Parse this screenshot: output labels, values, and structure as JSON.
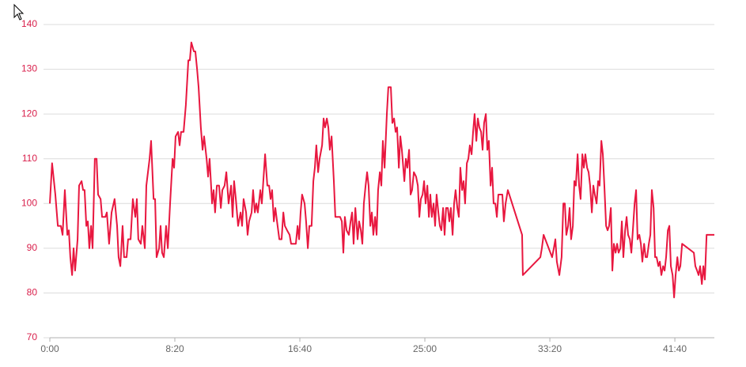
{
  "chart_data": {
    "type": "line",
    "xlim": [
      0,
      2658
    ],
    "ylim": [
      70,
      140
    ],
    "yticks": [
      70,
      80,
      90,
      100,
      110,
      120,
      130,
      140
    ],
    "xticks": [
      {
        "value": 0,
        "label": "0:00"
      },
      {
        "value": 500,
        "label": "8:20"
      },
      {
        "value": 1000,
        "label": "16:40"
      },
      {
        "value": 1500,
        "label": "25:00"
      },
      {
        "value": 2000,
        "label": "33:20"
      },
      {
        "value": 2500,
        "label": "41:40"
      }
    ],
    "grid": true,
    "x": [
      0,
      9,
      22,
      32,
      44,
      51,
      60,
      70,
      76,
      82,
      89,
      95,
      101,
      111,
      117,
      127,
      133,
      139,
      146,
      152,
      158,
      165,
      171,
      180,
      187,
      193,
      203,
      209,
      222,
      228,
      237,
      247,
      259,
      269,
      275,
      282,
      291,
      297,
      307,
      313,
      323,
      332,
      342,
      348,
      354,
      364,
      370,
      380,
      386,
      399,
      405,
      415,
      421,
      427,
      437,
      443,
      449,
      456,
      465,
      472,
      481,
      491,
      497,
      503,
      513,
      519,
      525,
      535,
      544,
      554,
      560,
      566,
      576,
      582,
      589,
      595,
      604,
      611,
      617,
      627,
      633,
      639,
      649,
      655,
      661,
      668,
      677,
      684,
      690,
      699,
      706,
      715,
      725,
      731,
      737,
      744,
      753,
      763,
      769,
      775,
      785,
      791,
      797,
      807,
      813,
      820,
      826,
      832,
      842,
      848,
      861,
      870,
      877,
      883,
      889,
      896,
      902,
      911,
      918,
      927,
      934,
      940,
      949,
      959,
      965,
      975,
      984,
      991,
      997,
      1003,
      1009,
      1019,
      1025,
      1032,
      1038,
      1047,
      1054,
      1060,
      1066,
      1073,
      1079,
      1089,
      1095,
      1101,
      1108,
      1114,
      1120,
      1127,
      1136,
      1142,
      1149,
      1155,
      1161,
      1168,
      1174,
      1180,
      1187,
      1196,
      1203,
      1209,
      1215,
      1222,
      1231,
      1237,
      1244,
      1250,
      1256,
      1263,
      1269,
      1275,
      1282,
      1288,
      1294,
      1301,
      1307,
      1313,
      1320,
      1326,
      1332,
      1339,
      1348,
      1354,
      1364,
      1370,
      1377,
      1383,
      1389,
      1396,
      1402,
      1408,
      1418,
      1424,
      1430,
      1437,
      1443,
      1449,
      1456,
      1465,
      1472,
      1478,
      1484,
      1491,
      1497,
      1503,
      1510,
      1516,
      1522,
      1528,
      1535,
      1541,
      1547,
      1554,
      1560,
      1566,
      1573,
      1579,
      1585,
      1592,
      1598,
      1604,
      1611,
      1617,
      1623,
      1630,
      1636,
      1642,
      1649,
      1655,
      1661,
      1668,
      1674,
      1680,
      1687,
      1693,
      1699,
      1706,
      1712,
      1718,
      1725,
      1731,
      1737,
      1744,
      1750,
      1756,
      1763,
      1769,
      1775,
      1782,
      1788,
      1794,
      1804,
      1810,
      1816,
      1823,
      1832,
      1889,
      1892,
      1962,
      1968,
      1975,
      2009,
      2016,
      2022,
      2028,
      2038,
      2047,
      2054,
      2060,
      2066,
      2073,
      2079,
      2085,
      2092,
      2098,
      2104,
      2111,
      2117,
      2123,
      2130,
      2136,
      2142,
      2149,
      2155,
      2161,
      2168,
      2174,
      2180,
      2187,
      2193,
      2199,
      2206,
      2212,
      2218,
      2225,
      2231,
      2237,
      2244,
      2250,
      2256,
      2263,
      2269,
      2275,
      2282,
      2288,
      2294,
      2301,
      2307,
      2313,
      2320,
      2326,
      2332,
      2339,
      2345,
      2351,
      2358,
      2364,
      2370,
      2377,
      2383,
      2389,
      2396,
      2402,
      2408,
      2415,
      2421,
      2427,
      2434,
      2440,
      2446,
      2453,
      2459,
      2465,
      2472,
      2478,
      2484,
      2491,
      2497,
      2503,
      2510,
      2516,
      2522,
      2529,
      2576,
      2582,
      2589,
      2595,
      2601,
      2608,
      2614,
      2620,
      2627,
      2658
    ],
    "series": [
      {
        "color": "#e8173f",
        "values": [
          100,
          109,
          102,
          95,
          95,
          93,
          103,
          93,
          94,
          88,
          84,
          90,
          85,
          92,
          104,
          105,
          103,
          103,
          95,
          96,
          90,
          95,
          90,
          110,
          110,
          102,
          101,
          97,
          97,
          98,
          91,
          98,
          101,
          95,
          88,
          86,
          95,
          88,
          88,
          92,
          92,
          101,
          97,
          101,
          92,
          91,
          95,
          90,
          104,
          110,
          114,
          101,
          101,
          88,
          90,
          95,
          89,
          88,
          95,
          90,
          100,
          110,
          108,
          115,
          116,
          113,
          116,
          116,
          122,
          132,
          132,
          136,
          134,
          134,
          130,
          126,
          117,
          112,
          115,
          110,
          106,
          110,
          100,
          103,
          98,
          104,
          104,
          99,
          103,
          104,
          107,
          100,
          104,
          97,
          105,
          101,
          95,
          98,
          95,
          101,
          98,
          93,
          96,
          98,
          103,
          98,
          100,
          98,
          103,
          100,
          111,
          104,
          104,
          101,
          103,
          96,
          99,
          95,
          92,
          92,
          98,
          95,
          94,
          93,
          91,
          91,
          91,
          95,
          92,
          98,
          102,
          100,
          96,
          90,
          95,
          95,
          105,
          108,
          113,
          107,
          110,
          113,
          119,
          117,
          119,
          117,
          112,
          115,
          105,
          97,
          97,
          97,
          97,
          96,
          89,
          97,
          94,
          93,
          96,
          98,
          91,
          99,
          92,
          96,
          94,
          91,
          100,
          104,
          107,
          104,
          95,
          98,
          93,
          97,
          93,
          103,
          107,
          104,
          114,
          108,
          120,
          126,
          126,
          118,
          119,
          116,
          117,
          108,
          115,
          112,
          105,
          110,
          108,
          112,
          102,
          103,
          107,
          106,
          104,
          97,
          101,
          102,
          105,
          100,
          104,
          97,
          102,
          97,
          100,
          95,
          102,
          98,
          95,
          94,
          99,
          93,
          99,
          99,
          96,
          99,
          93,
          100,
          103,
          99,
          97,
          108,
          103,
          105,
          100,
          109,
          110,
          113,
          111,
          116,
          120,
          114,
          119,
          117,
          116,
          112,
          118,
          120,
          112,
          114,
          104,
          108,
          100,
          100,
          97,
          102,
          102,
          102,
          96,
          100,
          103,
          93,
          84,
          88,
          90,
          93,
          88,
          90,
          92,
          87,
          84,
          88,
          100,
          100,
          93,
          95,
          99,
          92,
          95,
          105,
          104,
          111,
          104,
          101,
          111,
          108,
          111,
          108,
          107,
          104,
          98,
          104,
          102,
          100,
          105,
          104,
          114,
          111,
          104,
          95,
          94,
          95,
          99,
          85,
          91,
          89,
          91,
          89,
          90,
          96,
          88,
          94,
          97,
          93,
          92,
          89,
          94,
          100,
          103,
          92,
          93,
          91,
          87,
          91,
          88,
          88,
          91,
          93,
          103,
          99,
          88,
          88,
          86,
          87,
          84,
          86,
          85,
          88,
          94,
          95,
          86,
          84,
          79,
          84,
          88,
          85,
          86,
          91,
          89,
          86,
          85,
          84,
          86,
          82,
          86,
          83,
          93,
          93
        ]
      }
    ]
  }
}
